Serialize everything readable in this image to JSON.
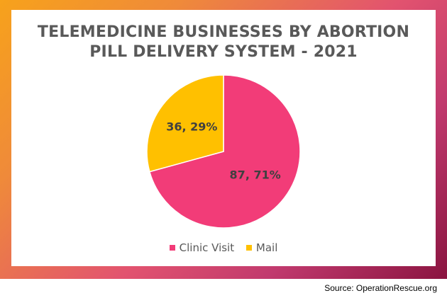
{
  "chart_data": {
    "type": "pie",
    "title_lines": [
      "TELEMEDICINE BUSINESSES BY ABORTION",
      "PILL DELIVERY SYSTEM - 2021"
    ],
    "slices": [
      {
        "name": "Clinic Visit",
        "value": 87,
        "percent": 71,
        "label": "87, 71%",
        "color": "#f23c78"
      },
      {
        "name": "Mail",
        "value": 36,
        "percent": 29,
        "label": "36, 29%",
        "color": "#ffc000"
      }
    ],
    "legend_position": "bottom"
  },
  "source": "Source: OperationRescue.org"
}
